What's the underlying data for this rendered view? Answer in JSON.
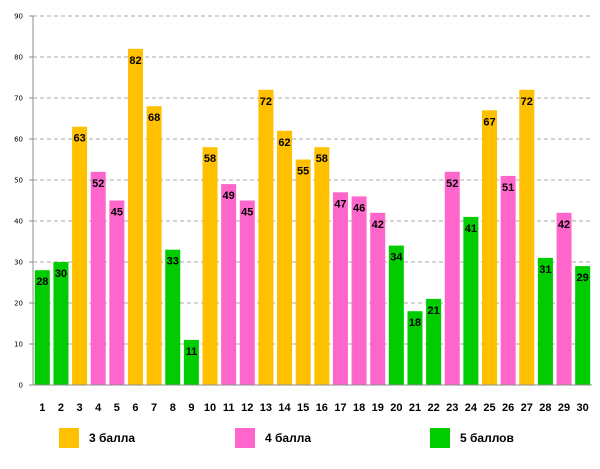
{
  "chart_data": {
    "type": "bar",
    "categories": [
      "1",
      "2",
      "3",
      "4",
      "5",
      "6",
      "7",
      "8",
      "9",
      "10",
      "11",
      "12",
      "13",
      "14",
      "15",
      "16",
      "17",
      "18",
      "19",
      "20",
      "21",
      "22",
      "23",
      "24",
      "25",
      "26",
      "27",
      "28",
      "29",
      "30"
    ],
    "values": [
      28,
      30,
      63,
      52,
      45,
      82,
      68,
      33,
      11,
      58,
      49,
      45,
      72,
      62,
      55,
      58,
      47,
      46,
      42,
      34,
      18,
      21,
      52,
      41,
      67,
      51,
      72,
      31,
      42,
      29
    ],
    "groups": [
      "5 баллов",
      "5 баллов",
      "3 балла",
      "4 балла",
      "4 балла",
      "3 балла",
      "3 балла",
      "5 баллов",
      "5 баллов",
      "3 балла",
      "4 балла",
      "4 балла",
      "3 балла",
      "3 балла",
      "3 балла",
      "3 балла",
      "4 балла",
      "4 балла",
      "4 балла",
      "5 баллов",
      "5 баллов",
      "5 баллов",
      "4 балла",
      "5 баллов",
      "3 балла",
      "4 балла",
      "3 балла",
      "5 баллов",
      "4 балла",
      "5 баллов"
    ],
    "yticks": [
      0,
      10,
      20,
      30,
      40,
      50,
      60,
      70,
      80,
      90
    ],
    "ylim": [
      0,
      90
    ],
    "grid": true,
    "legend_position": "bottom",
    "legend": [
      {
        "label": "3 балла",
        "color": "#FFC000"
      },
      {
        "label": "4 балла",
        "color": "#FF66CC"
      },
      {
        "label": "5 баллов",
        "color": "#00CC00"
      }
    ]
  }
}
